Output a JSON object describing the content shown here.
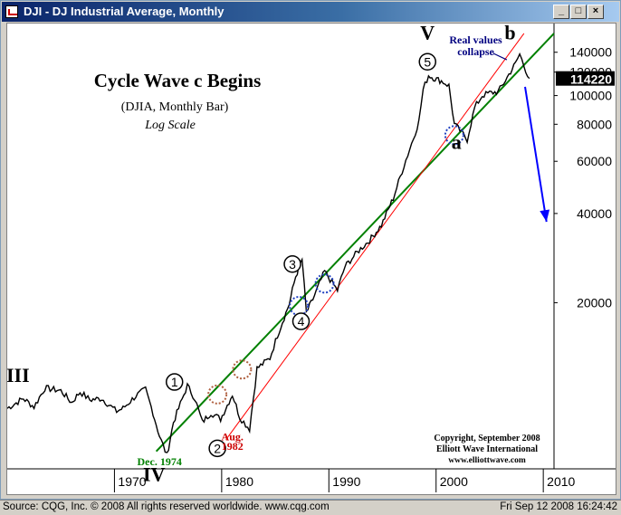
{
  "window": {
    "title": "DJI - DJ Industrial Average, Monthly",
    "minimize_label": "_",
    "maximize_label": "□",
    "close_label": "×"
  },
  "status": {
    "source": "Source: CQG, Inc. © 2008 All rights reserved worldwide. www.cqg.com",
    "datetime": "Fri Sep 12 2008  16:24:42"
  },
  "chart_data": {
    "type": "line",
    "title": "Cycle Wave c Begins",
    "subtitle": "(DJIA, Monthly Bar)",
    "scale_note": "Log Scale",
    "y_scale": "log",
    "ylim": [
      5500,
      175000
    ],
    "xlim": [
      1960,
      2011
    ],
    "x_ticks": [
      1970,
      1980,
      1990,
      2000,
      2010
    ],
    "y_ticks": [
      20000,
      40000,
      60000,
      80000,
      100000,
      120000,
      140000
    ],
    "last_value_label": "114220",
    "last_value": 114220,
    "series": [
      {
        "x": [
          1960.0,
          1961.5,
          1962.5,
          1963.5,
          1965.0,
          1966.0,
          1966.8,
          1967.7,
          1968.8,
          1970.2,
          1970.8,
          1972.0,
          1972.9,
          1973.6,
          1974.2,
          1974.9,
          1975.5,
          1976.8,
          1977.5,
          1978.2,
          1979.0,
          1979.9,
          1981.0,
          1981.7,
          1982.6,
          1983.3,
          1984.5,
          1985.2,
          1986.3,
          1986.9,
          1987.5,
          1987.9,
          1988.5,
          1989.6,
          1990.8,
          1991.5,
          1992.8,
          1993.8,
          1994.9,
          1996.0,
          1997.0,
          1997.9,
          1998.4,
          1998.8,
          1999.3,
          1999.9,
          2000.5,
          2001.2,
          2001.7,
          2002.4,
          2002.9,
          2003.6,
          2004.3,
          2005.0,
          2005.8,
          2006.3,
          2006.8,
          2007.4,
          2007.8,
          2008.2,
          2008.7
        ],
        "y": [
          8800,
          9500,
          8900,
          10300,
          10100,
          9200,
          10000,
          9400,
          9500,
          8600,
          8800,
          9700,
          10200,
          8500,
          7100,
          6100,
          7900,
          10500,
          9500,
          7900,
          8500,
          8100,
          9800,
          8200,
          7500,
          12000,
          13000,
          15500,
          19800,
          24500,
          28000,
          18500,
          20500,
          25500,
          22000,
          26500,
          30000,
          32500,
          36500,
          45000,
          58000,
          72000,
          82000,
          105000,
          117000,
          114000,
          112000,
          108000,
          80000,
          75000,
          71000,
          91000,
          100000,
          102000,
          103000,
          110000,
          118000,
          128000,
          138000,
          126000,
          114220
        ]
      }
    ],
    "trendlines": [
      {
        "name": "green-trendline",
        "color": "#008000",
        "x": [
          1973.9,
          2011.0
        ],
        "y": [
          6300,
          162000
        ]
      },
      {
        "name": "red-trendline",
        "color": "#ff0000",
        "x": [
          1980.4,
          2008.2
        ],
        "y": [
          6900,
          162000
        ]
      }
    ],
    "projection": {
      "x": [
        2008.3,
        2010.3
      ],
      "y": [
        107000,
        37500
      ]
    },
    "wave_labels": [
      {
        "text": "III",
        "x": 1961.0,
        "y": 10800
      },
      {
        "text": "IV",
        "x": 1973.7,
        "y": 5000
      },
      {
        "text": "V",
        "x": 1999.2,
        "y": 155000
      },
      {
        "text": "a",
        "x": 2001.9,
        "y": 66000
      },
      {
        "text": "b",
        "x": 2006.9,
        "y": 155000
      }
    ],
    "circled_labels": [
      {
        "text": "1",
        "x": 1975.6,
        "y": 10800
      },
      {
        "text": "2",
        "x": 1979.6,
        "y": 6450
      },
      {
        "text": "3",
        "x": 1986.6,
        "y": 27000
      },
      {
        "text": "4",
        "x": 1987.4,
        "y": 17300
      },
      {
        "text": "5",
        "x": 1999.2,
        "y": 130000
      }
    ],
    "highlight_circles": [
      {
        "x": 1979.6,
        "y": 9800,
        "color": "#b06040"
      },
      {
        "x": 1981.9,
        "y": 11900,
        "color": "#b06040"
      },
      {
        "x": 1987.2,
        "y": 19500,
        "color": "#2040c0"
      },
      {
        "x": 1989.6,
        "y": 23200,
        "color": "#2040c0"
      },
      {
        "x": 2001.7,
        "y": 73500,
        "color": "#2040c0"
      }
    ],
    "annotations": [
      {
        "text": "Dec. 1974",
        "color": "#008000",
        "x": 1974.2,
        "y": 5650
      },
      {
        "text": "Aug.",
        "color": "#cc0000",
        "x": 1981.0,
        "y": 6870
      },
      {
        "text": "1982",
        "color": "#cc0000",
        "x": 1981.0,
        "y": 6380
      },
      {
        "text": "Real values",
        "color": "#000080",
        "x": 2003.7,
        "y": 150000
      },
      {
        "text": "collapse",
        "color": "#000080",
        "x": 2003.7,
        "y": 137000
      }
    ],
    "copyright": [
      "Copyright, September 2008",
      "Elliott Wave International",
      "www.elliottwave.com"
    ]
  }
}
